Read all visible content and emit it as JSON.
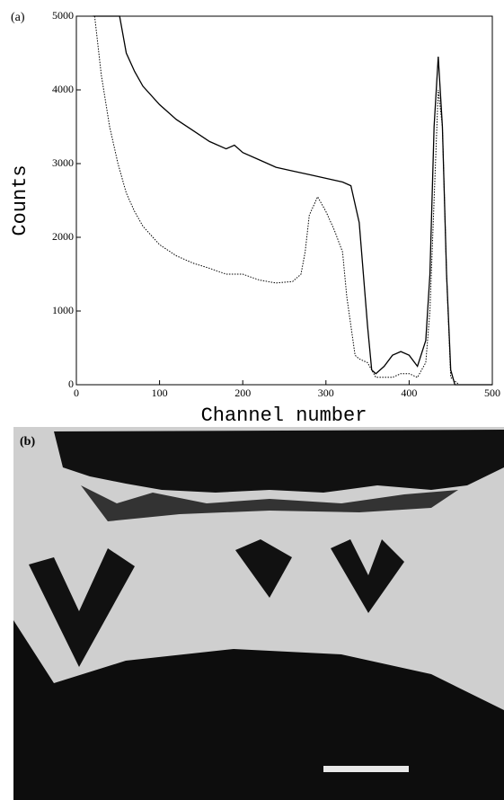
{
  "panel_a": {
    "label": "(a)",
    "chart_data": {
      "type": "line",
      "xlabel": "Channel number",
      "ylabel": "Counts",
      "xlim": [
        0,
        500
      ],
      "ylim": [
        0,
        5000
      ],
      "xticks": [
        0,
        100,
        200,
        300,
        400,
        500
      ],
      "yticks": [
        0,
        1000,
        2000,
        3000,
        4000,
        5000
      ],
      "series": [
        {
          "color": "#000000",
          "line_style": "solid",
          "x": [
            20,
            52,
            60,
            70,
            80,
            100,
            120,
            140,
            160,
            180,
            190,
            200,
            220,
            240,
            260,
            280,
            300,
            320,
            330,
            340,
            345,
            350,
            355,
            360,
            370,
            380,
            390,
            400,
            410,
            420,
            425,
            430,
            435,
            440,
            445,
            450,
            455,
            500
          ],
          "values": [
            5000,
            5000,
            4500,
            4250,
            4050,
            3800,
            3600,
            3450,
            3300,
            3200,
            3250,
            3150,
            3050,
            2950,
            2900,
            2850,
            2800,
            2750,
            2700,
            2200,
            1500,
            800,
            200,
            150,
            250,
            400,
            450,
            400,
            250,
            600,
            1500,
            3500,
            4450,
            3500,
            1500,
            200,
            0,
            0
          ]
        },
        {
          "color": "#000000",
          "line_style": "dotted",
          "x": [
            22,
            30,
            40,
            50,
            60,
            70,
            80,
            100,
            120,
            140,
            160,
            180,
            200,
            220,
            240,
            260,
            270,
            275,
            280,
            290,
            300,
            310,
            320,
            325,
            330,
            335,
            340,
            350,
            360,
            380,
            390,
            400,
            410,
            420,
            425,
            430,
            435,
            440,
            445,
            450,
            460,
            500
          ],
          "values": [
            5000,
            4200,
            3500,
            3000,
            2600,
            2350,
            2150,
            1900,
            1750,
            1650,
            1580,
            1500,
            1500,
            1420,
            1380,
            1400,
            1500,
            1800,
            2300,
            2550,
            2350,
            2100,
            1800,
            1200,
            800,
            400,
            350,
            300,
            100,
            100,
            150,
            150,
            100,
            300,
            1000,
            2500,
            4000,
            3500,
            1500,
            100,
            0,
            0
          ]
        }
      ]
    }
  },
  "panel_b": {
    "label": "(b)"
  }
}
